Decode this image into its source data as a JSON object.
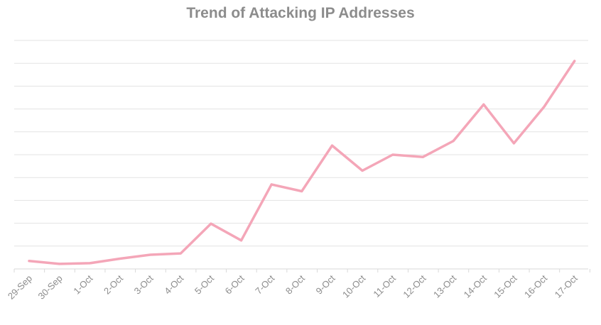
{
  "chart_data": {
    "type": "line",
    "title": "Trend of Attacking IP Addresses",
    "xlabel": "",
    "ylabel": "",
    "categories": [
      "29-Sep",
      "30-Sep",
      "1-Oct",
      "2-Oct",
      "3-Oct",
      "4-Oct",
      "5-Oct",
      "6-Oct",
      "7-Oct",
      "8-Oct",
      "9-Oct",
      "10-Oct",
      "11-Oct",
      "12-Oct",
      "13-Oct",
      "14-Oct",
      "15-Oct",
      "16-Oct",
      "17-Oct"
    ],
    "series": [
      {
        "values": [
          0.35,
          0.22,
          0.25,
          0.45,
          0.62,
          0.68,
          1.98,
          1.25,
          3.7,
          3.4,
          5.4,
          4.3,
          5.0,
          4.9,
          5.6,
          7.2,
          5.5,
          7.1,
          9.1
        ]
      }
    ],
    "ylim": [
      0,
      10
    ],
    "y_tick_labels_visible": false,
    "grid": true,
    "legend": "none",
    "line_color": "#f4a6b8",
    "grid_color": "#e3e3e3",
    "title_color": "#8c8c8c",
    "tick_label_color": "#8c8c8c"
  }
}
